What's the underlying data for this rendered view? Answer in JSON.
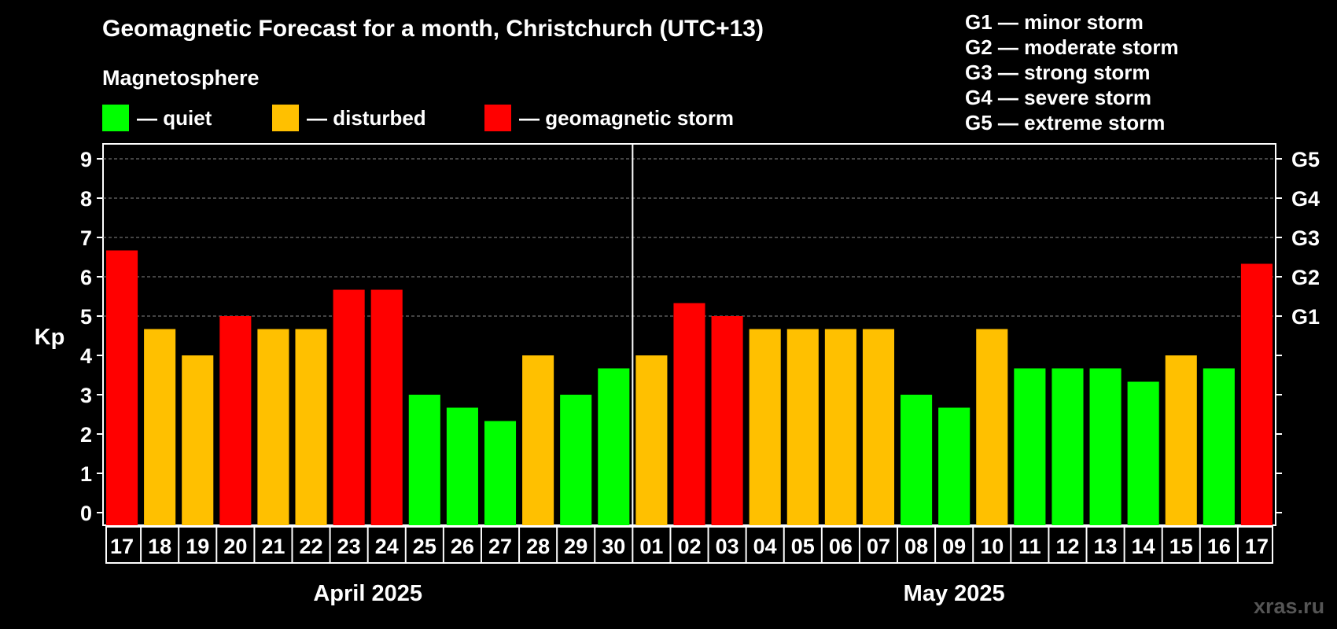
{
  "title": "Geomagnetic Forecast for a month, Christchurch (UTC+13)",
  "subtitle": "Magnetosphere",
  "legend": [
    {
      "label": "— quiet",
      "color": "#00ff00"
    },
    {
      "label": "— disturbed",
      "color": "#ffc000"
    },
    {
      "label": "— geomagnetic storm",
      "color": "#ff0000"
    }
  ],
  "g_scale": [
    "G1 — minor storm",
    "G2 — moderate storm",
    "G3 — strong storm",
    "G4 — severe storm",
    "G5 — extreme storm"
  ],
  "watermark": "xras.ru",
  "chart_data": {
    "type": "bar",
    "ylabel": "Kp",
    "ylim": [
      0,
      9
    ],
    "yticks": [
      "0",
      "1",
      "2",
      "3",
      "4",
      "5",
      "6",
      "7",
      "8",
      "9"
    ],
    "right_ticks": [
      {
        "y": 5,
        "label": "G1"
      },
      {
        "y": 6,
        "label": "G2"
      },
      {
        "y": 7,
        "label": "G3"
      },
      {
        "y": 8,
        "label": "G4"
      },
      {
        "y": 9,
        "label": "G5"
      }
    ],
    "grid": "horizontal dashed at 5-9",
    "categories": [
      "17",
      "18",
      "19",
      "20",
      "21",
      "22",
      "23",
      "24",
      "25",
      "26",
      "27",
      "28",
      "29",
      "30",
      "01",
      "02",
      "03",
      "04",
      "05",
      "06",
      "07",
      "08",
      "09",
      "10",
      "11",
      "12",
      "13",
      "14",
      "15",
      "16",
      "17"
    ],
    "values": [
      6.67,
      4.67,
      4.0,
      5.0,
      4.67,
      4.67,
      5.67,
      5.67,
      3.0,
      2.67,
      2.33,
      4.0,
      3.0,
      3.67,
      4.0,
      5.33,
      5.0,
      4.67,
      4.67,
      4.67,
      4.67,
      3.0,
      2.67,
      4.67,
      3.67,
      3.67,
      3.67,
      3.33,
      4.0,
      3.67,
      6.33
    ],
    "status": [
      "storm",
      "disturbed",
      "disturbed",
      "storm",
      "disturbed",
      "disturbed",
      "storm",
      "storm",
      "quiet",
      "quiet",
      "quiet",
      "disturbed",
      "quiet",
      "quiet",
      "disturbed",
      "storm",
      "storm",
      "disturbed",
      "disturbed",
      "disturbed",
      "disturbed",
      "quiet",
      "quiet",
      "disturbed",
      "quiet",
      "quiet",
      "quiet",
      "quiet",
      "disturbed",
      "quiet",
      "storm"
    ],
    "colors": {
      "quiet": "#00ff00",
      "disturbed": "#ffc000",
      "storm": "#ff0000"
    },
    "months": [
      {
        "label": "April 2025",
        "days": 14
      },
      {
        "label": "May 2025",
        "days": 17
      }
    ]
  }
}
